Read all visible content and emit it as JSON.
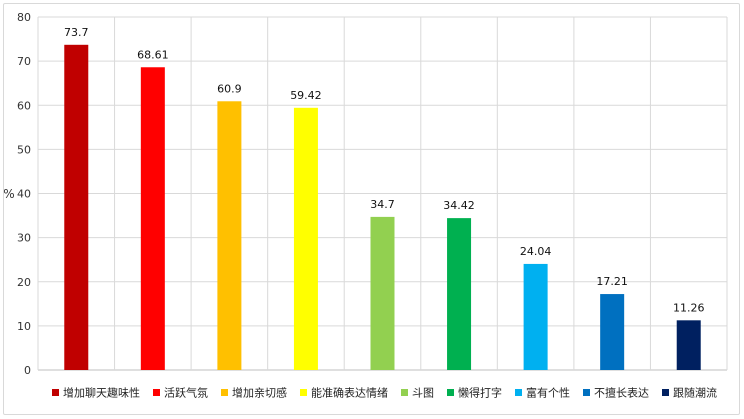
{
  "chart_data": {
    "type": "bar",
    "title": "",
    "xlabel": "",
    "ylabel": "%",
    "ylim": [
      0,
      80
    ],
    "ytick_step": 10,
    "grid": true,
    "legend_position": "bottom",
    "categories": [
      "增加聊天趣味性",
      "活跃气氛",
      "增加亲切感",
      "能准确表达情绪",
      "斗图",
      "懒得打字",
      "富有个性",
      "不擅长表达",
      "跟随潮流"
    ],
    "values": [
      73.7,
      68.61,
      60.9,
      59.42,
      34.7,
      34.42,
      24.04,
      17.21,
      11.26
    ],
    "value_labels": [
      "73.7",
      "68.61",
      "60.9",
      "59.42",
      "34.7",
      "34.42",
      "24.04",
      "17.21",
      "11.26"
    ],
    "colors": [
      "#C00000",
      "#FF0000",
      "#FFC000",
      "#FFFF00",
      "#92D050",
      "#00B050",
      "#00B0F0",
      "#0070C0",
      "#002060"
    ]
  }
}
